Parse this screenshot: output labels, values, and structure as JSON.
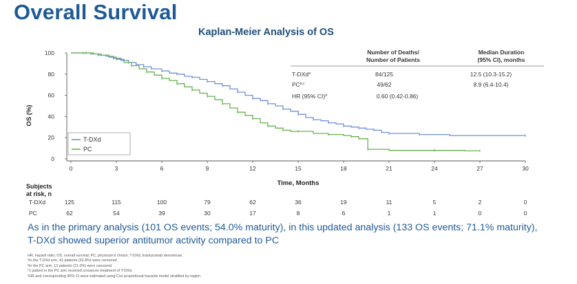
{
  "slide": {
    "title": "Overall Survival",
    "subtitle": "Kaplan-Meier Analysis of OS",
    "summary_line1": "As in the primary analysis (101 OS events; 54.0% maturity), in this updated analysis (133 OS events; 71.1% maturity),",
    "summary_line2": "T-DXd showed superior antitumor activity compared to PC",
    "footnotes": [
      "HR, hazard ratio; OS, overall survival; PC, physician's choice; T-DXd, trastuzumab deruxtecan.",
      "ᵃIn the T-DXd arm, 41 patients (32.8%) were censored.",
      "ᵇIn the PC arm, 13 patients (21.0%) were censored.",
      "ᶜ1 patient in the PC arm received crossover treatment of T-DXd.",
      "ᵈHR and corresponding 95% CI were estimated using Cox proportional hazards model stratified by region."
    ]
  },
  "table": {
    "col1_header_line1": "Number of Deaths/",
    "col1_header_line2": "Number of Patients",
    "col2_header_line1": "Median Duration",
    "col2_header_line2": "(95% CI), months",
    "rows": [
      {
        "label": "T-DXd",
        "sup": "a",
        "deaths": "84/125",
        "median": "12.5 (10.3-15.2)"
      },
      {
        "label": "PC",
        "sup": "b,c",
        "deaths": "49/62",
        "median": "8.9 (6.4-10.4)"
      }
    ],
    "hr_label": "HR (95% CI)",
    "hr_sup": "d",
    "hr_value": "0.60 (0.42-0.86)"
  },
  "risk_table": {
    "header_line1": "Subjects",
    "header_line2": "at risk, n",
    "rows": [
      {
        "label": "T-DXd",
        "values": [
          "125",
          "115",
          "100",
          "79",
          "62",
          "36",
          "19",
          "11",
          "5",
          "2",
          "0"
        ]
      },
      {
        "label": "PC",
        "values": [
          "62",
          "54",
          "39",
          "30",
          "17",
          "8",
          "6",
          "1",
          "1",
          "0",
          "0"
        ]
      }
    ]
  },
  "chart_data": {
    "type": "line",
    "title": "Kaplan-Meier Analysis of OS",
    "xlabel": "Time, Months",
    "ylabel": "OS (%)",
    "xlim": [
      0,
      30
    ],
    "ylim": [
      0,
      100
    ],
    "x_ticks": [
      0,
      3,
      6,
      9,
      12,
      15,
      18,
      21,
      24,
      27,
      30
    ],
    "y_ticks": [
      0,
      20,
      40,
      60,
      80,
      100
    ],
    "legend_position": "bottom-left",
    "series": [
      {
        "name": "T-DXd",
        "color": "#6f8fd6",
        "points": [
          [
            0,
            100
          ],
          [
            0.8,
            100
          ],
          [
            1.3,
            99
          ],
          [
            1.8,
            98
          ],
          [
            2.3,
            97
          ],
          [
            2.8,
            95
          ],
          [
            3.3,
            93
          ],
          [
            3.8,
            91
          ],
          [
            4.3,
            89
          ],
          [
            4.8,
            87
          ],
          [
            5.3,
            85
          ],
          [
            6,
            83
          ],
          [
            6.5,
            81
          ],
          [
            7,
            80
          ],
          [
            7.5,
            78
          ],
          [
            8,
            77
          ],
          [
            8.5,
            75
          ],
          [
            9,
            73
          ],
          [
            9.5,
            71
          ],
          [
            10,
            69
          ],
          [
            10.5,
            66
          ],
          [
            11,
            63
          ],
          [
            11.5,
            60
          ],
          [
            12,
            57
          ],
          [
            12.5,
            55
          ],
          [
            13,
            52
          ],
          [
            13.5,
            50
          ],
          [
            14,
            47
          ],
          [
            14.5,
            45
          ],
          [
            15,
            42
          ],
          [
            15.5,
            39
          ],
          [
            16,
            37
          ],
          [
            16.5,
            36
          ],
          [
            17,
            34
          ],
          [
            17.5,
            33
          ],
          [
            18,
            31
          ],
          [
            18.5,
            30
          ],
          [
            19,
            29
          ],
          [
            19.5,
            28
          ],
          [
            20,
            27
          ],
          [
            20.5,
            25
          ],
          [
            21,
            24
          ],
          [
            21.5,
            24
          ],
          [
            23,
            23
          ],
          [
            25,
            22
          ],
          [
            30,
            22
          ]
        ]
      },
      {
        "name": "PC",
        "color": "#66b04c",
        "points": [
          [
            0,
            100
          ],
          [
            1,
            100
          ],
          [
            1.5,
            99
          ],
          [
            2,
            98
          ],
          [
            2.5,
            96
          ],
          [
            3,
            94
          ],
          [
            3.5,
            91
          ],
          [
            4,
            88
          ],
          [
            4.5,
            85
          ],
          [
            5,
            82
          ],
          [
            5.5,
            79
          ],
          [
            6,
            76
          ],
          [
            6.5,
            74
          ],
          [
            7,
            71
          ],
          [
            7.5,
            68
          ],
          [
            8,
            65
          ],
          [
            8.5,
            62
          ],
          [
            9,
            59
          ],
          [
            9.5,
            56
          ],
          [
            10,
            52
          ],
          [
            10.5,
            48
          ],
          [
            11,
            44
          ],
          [
            11.5,
            41
          ],
          [
            12,
            38
          ],
          [
            12.5,
            34
          ],
          [
            13,
            31
          ],
          [
            13.5,
            29
          ],
          [
            14,
            27
          ],
          [
            14.5,
            26
          ],
          [
            15,
            26
          ],
          [
            16,
            24
          ],
          [
            17,
            23
          ],
          [
            18,
            22
          ],
          [
            18.5,
            21
          ],
          [
            19,
            19
          ],
          [
            19.6,
            9
          ],
          [
            21,
            8
          ],
          [
            24,
            8
          ],
          [
            26,
            7.5
          ],
          [
            27,
            7.5
          ]
        ]
      }
    ]
  }
}
